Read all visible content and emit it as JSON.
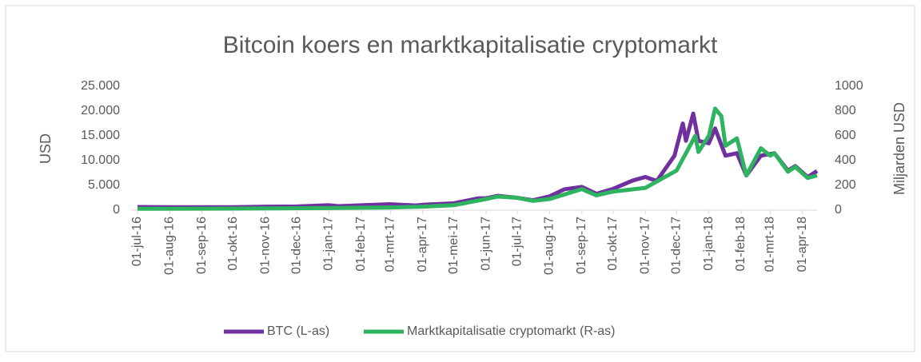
{
  "chart_data": {
    "type": "line",
    "title": "Bitcoin koers en marktkapitalisatie cryptomarkt",
    "y_label": "USD",
    "y2_label": "Miljarden USD",
    "xlim": [
      "2016-07-01",
      "2018-04-15"
    ],
    "xticks": [
      {
        "value": "2016-07-01",
        "label": "01-jul-16"
      },
      {
        "value": "2016-08-01",
        "label": "01-aug-16"
      },
      {
        "value": "2016-09-01",
        "label": "01-sep-16"
      },
      {
        "value": "2016-10-01",
        "label": "01-okt-16"
      },
      {
        "value": "2016-11-01",
        "label": "01-nov-16"
      },
      {
        "value": "2016-12-01",
        "label": "01-dec-16"
      },
      {
        "value": "2017-01-01",
        "label": "01-jan-17"
      },
      {
        "value": "2017-02-01",
        "label": "01-feb-17"
      },
      {
        "value": "2017-03-01",
        "label": "01-mrt-17"
      },
      {
        "value": "2017-04-01",
        "label": "01-apr-17"
      },
      {
        "value": "2017-05-01",
        "label": "01-mei-17"
      },
      {
        "value": "2017-06-01",
        "label": "01-jun-17"
      },
      {
        "value": "2017-07-01",
        "label": "01-jul-17"
      },
      {
        "value": "2017-08-01",
        "label": "01-aug-17"
      },
      {
        "value": "2017-09-01",
        "label": "01-sep-17"
      },
      {
        "value": "2017-10-01",
        "label": "01-okt-17"
      },
      {
        "value": "2017-11-01",
        "label": "01-nov-17"
      },
      {
        "value": "2017-12-01",
        "label": "01-dec-17"
      },
      {
        "value": "2018-01-01",
        "label": "01-jan-18"
      },
      {
        "value": "2018-02-01",
        "label": "01-feb-18"
      },
      {
        "value": "2018-03-01",
        "label": "01-mrt-18"
      },
      {
        "value": "2018-04-01",
        "label": "01-apr-18"
      }
    ],
    "ylim": [
      0,
      25000
    ],
    "yticks": [
      0,
      {
        "value": 5000,
        "label": "5.000"
      },
      {
        "value": 10000,
        "label": "10.000"
      },
      {
        "value": 15000,
        "label": "15.000"
      },
      {
        "value": 20000,
        "label": "20.000"
      },
      {
        "value": 25000,
        "label": "25.000"
      }
    ],
    "y2lim": [
      0,
      1000
    ],
    "y2ticks": [
      0,
      200,
      400,
      600,
      800,
      1000
    ],
    "legend": "bottom",
    "series": [
      {
        "name": "BTC (L-as)",
        "color": "#7030a0",
        "x": [
          "2016-07-01",
          "2016-08-01",
          "2016-09-01",
          "2016-10-01",
          "2016-11-01",
          "2016-12-01",
          "2017-01-01",
          "2017-01-10",
          "2017-02-01",
          "2017-03-01",
          "2017-03-25",
          "2017-04-01",
          "2017-05-01",
          "2017-05-25",
          "2017-06-01",
          "2017-06-12",
          "2017-07-01",
          "2017-07-16",
          "2017-08-01",
          "2017-08-15",
          "2017-09-01",
          "2017-09-15",
          "2017-10-01",
          "2017-10-20",
          "2017-11-01",
          "2017-11-12",
          "2017-11-29",
          "2017-12-07",
          "2017-12-10",
          "2017-12-17",
          "2017-12-22",
          "2018-01-01",
          "2018-01-07",
          "2018-01-17",
          "2018-01-28",
          "2018-02-06",
          "2018-02-20",
          "2018-03-05",
          "2018-03-18",
          "2018-03-25",
          "2018-04-06",
          "2018-04-15"
        ],
        "values": [
          650,
          600,
          600,
          610,
          700,
          750,
          1000,
          800,
          980,
          1200,
          950,
          1080,
          1400,
          2400,
          2400,
          2900,
          2500,
          2000,
          2800,
          4200,
          4700,
          3300,
          4300,
          6000,
          6700,
          5900,
          11000,
          17500,
          14000,
          19500,
          14000,
          13500,
          16500,
          11000,
          11500,
          7000,
          11000,
          11500,
          8000,
          8900,
          6700,
          7900
        ]
      },
      {
        "name": "Marktkapitalisatie cryptomarkt (R-as)",
        "color": "#2eb35f",
        "axis": "y2",
        "x": [
          "2016-07-01",
          "2016-10-01",
          "2017-01-01",
          "2017-03-01",
          "2017-04-01",
          "2017-05-01",
          "2017-06-01",
          "2017-06-12",
          "2017-07-01",
          "2017-07-16",
          "2017-08-01",
          "2017-09-01",
          "2017-09-15",
          "2017-10-01",
          "2017-11-01",
          "2017-12-01",
          "2017-12-19",
          "2017-12-22",
          "2018-01-01",
          "2018-01-07",
          "2018-01-13",
          "2018-01-17",
          "2018-01-28",
          "2018-02-06",
          "2018-02-20",
          "2018-03-01",
          "2018-03-05",
          "2018-03-18",
          "2018-03-25",
          "2018-04-06",
          "2018-04-15"
        ],
        "values": [
          11,
          13,
          17,
          22,
          28,
          40,
          90,
          110,
          100,
          75,
          90,
          170,
          120,
          150,
          180,
          320,
          600,
          470,
          600,
          820,
          760,
          520,
          580,
          280,
          500,
          440,
          460,
          310,
          350,
          260,
          280
        ]
      }
    ]
  }
}
